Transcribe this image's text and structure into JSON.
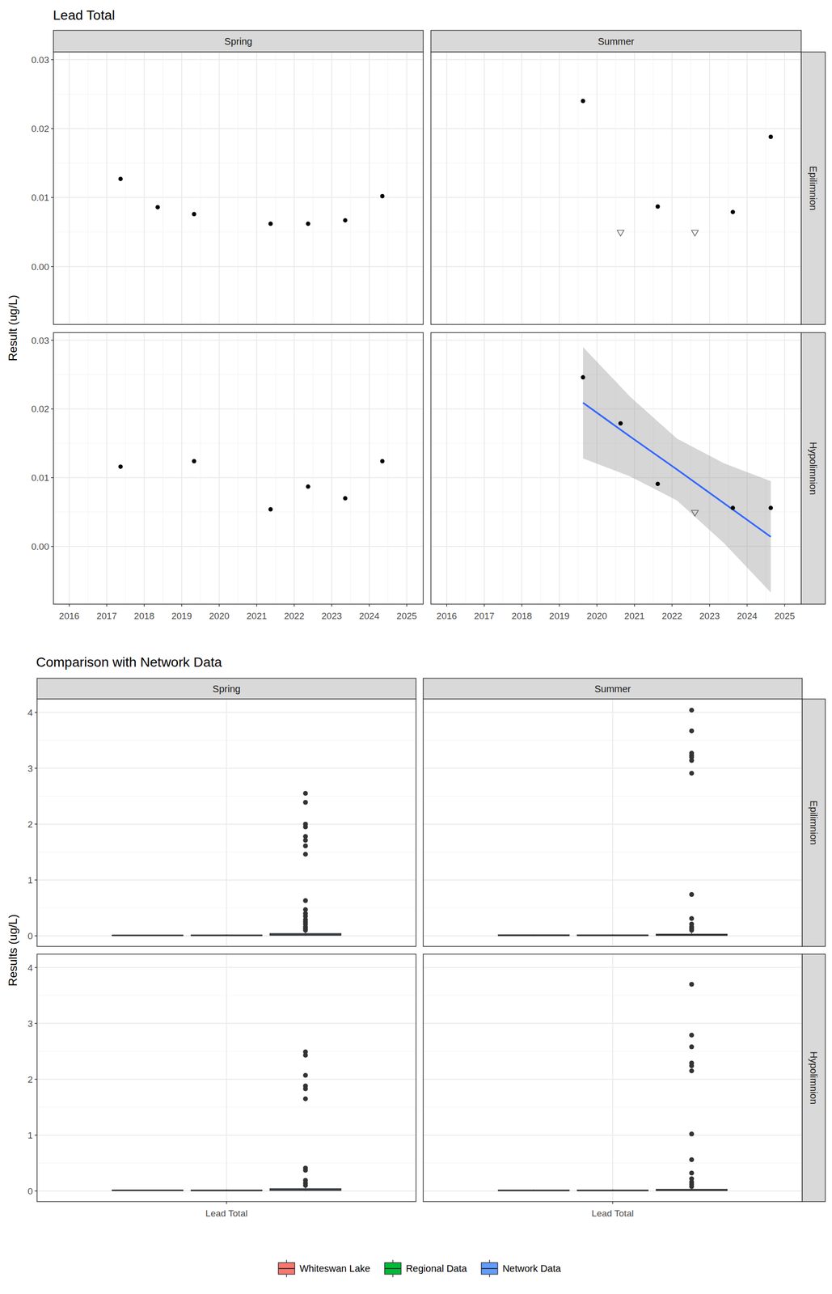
{
  "chart_data": [
    {
      "type": "scatter",
      "title": "Lead Total",
      "y_label": "Result (ug/L)",
      "columns": [
        "Spring",
        "Summer"
      ],
      "rows": [
        "Epilimnion",
        "Hypolimnion"
      ],
      "xlim": [
        2015.58,
        2025.44
      ],
      "xticks": [
        2016,
        2017,
        2018,
        2019,
        2020,
        2021,
        2022,
        2023,
        2024,
        2025
      ],
      "ylim": [
        -0.0084,
        0.0311
      ],
      "yticks": [
        {
          "value": 0,
          "label": "0.00"
        },
        {
          "value": 0.01,
          "label": "0.01"
        },
        {
          "value": 0.02,
          "label": "0.02"
        },
        {
          "value": 0.03,
          "label": "0.03"
        }
      ],
      "grid": true,
      "panels": [
        [
          {
            "series": [
              {
                "marker": "circle",
                "color": "#000000",
                "x": [
                  2017.37,
                  2018.36,
                  2019.33,
                  2021.37,
                  2022.37,
                  2023.36,
                  2024.35
                ],
                "values": [
                  0.0127,
                  0.0086,
                  0.0076,
                  0.0062,
                  0.0062,
                  0.0067,
                  0.0102
                ]
              }
            ]
          },
          {
            "series": [
              {
                "marker": "circle",
                "color": "#000000",
                "x": [
                  2019.63,
                  2021.62,
                  2023.62,
                  2024.63
                ],
                "values": [
                  0.024,
                  0.0087,
                  0.0079,
                  0.0188
                ]
              },
              {
                "marker": "triangle",
                "color": "#555555",
                "x": [
                  2020.63,
                  2022.61
                ],
                "values": [
                  0.0049,
                  0.0049
                ]
              }
            ]
          }
        ],
        [
          {
            "series": [
              {
                "marker": "circle",
                "color": "#000000",
                "x": [
                  2017.37,
                  2019.33,
                  2021.37,
                  2022.37,
                  2023.36,
                  2024.35
                ],
                "values": [
                  0.0116,
                  0.0124,
                  0.0054,
                  0.0087,
                  0.007,
                  0.0124
                ]
              }
            ]
          },
          {
            "series": [
              {
                "type": "line",
                "color": "#3366FF",
                "x": [
                  2019.63,
                  2020.88,
                  2022.13,
                  2023.38,
                  2024.63
                ],
                "values": [
                  0.0209,
                  0.016,
                  0.0112,
                  0.0063,
                  0.0014
                ],
                "lower": [
                  0.0128,
                  0.0102,
                  0.0067,
                  0.0005,
                  -0.0067
                ],
                "upper": [
                  0.029,
                  0.0218,
                  0.0157,
                  0.0121,
                  0.0095
                ]
              },
              {
                "marker": "circle",
                "color": "#000000",
                "x": [
                  2019.63,
                  2020.63,
                  2021.62,
                  2023.62,
                  2024.63
                ],
                "values": [
                  0.0246,
                  0.0179,
                  0.0091,
                  0.0056,
                  0.0056
                ]
              },
              {
                "marker": "triangle",
                "color": "#555555",
                "x": [
                  2022.61
                ],
                "values": [
                  0.0049
                ]
              }
            ]
          }
        ]
      ]
    },
    {
      "type": "box",
      "title": "Comparison with Network Data",
      "y_label": "Results (ug/L)",
      "categories": [
        "Lead Total"
      ],
      "columns": [
        "Spring",
        "Summer"
      ],
      "rows": [
        "Epilimnion",
        "Hypolimnion"
      ],
      "ylim": [
        -0.19,
        4.24
      ],
      "yticks": [
        0,
        1,
        2,
        3,
        4
      ],
      "grid": true,
      "legend": "bottom",
      "series": [
        {
          "name": "Whiteswan Lake",
          "color": "#F8766D",
          "boxes": [
            [
              {
                "min": 0.0062,
                "q1": 0.0062,
                "median": 0.0076,
                "q3": 0.0094,
                "max": 0.0127
              },
              {
                "min": 0.0049,
                "q1": 0.0057,
                "median": 0.0083,
                "q3": 0.0161,
                "max": 0.024
              }
            ],
            [
              {
                "min": 0.0054,
                "q1": 0.0074,
                "median": 0.0106,
                "q3": 0.0122,
                "max": 0.0124
              },
              {
                "min": 0.0049,
                "q1": 0.0056,
                "median": 0.0074,
                "q3": 0.0157,
                "max": 0.0246
              }
            ]
          ]
        },
        {
          "name": "Regional Data",
          "color": "#00BA38",
          "boxes": [
            [
              {
                "min": 0.002,
                "q1": 0.005,
                "median": 0.008,
                "q3": 0.013,
                "max": 0.025
              },
              {
                "min": 0.002,
                "q1": 0.005,
                "median": 0.009,
                "q3": 0.015,
                "max": 0.028
              }
            ],
            [
              {
                "min": 0.002,
                "q1": 0.005,
                "median": 0.009,
                "q3": 0.014,
                "max": 0.027
              },
              {
                "min": 0.002,
                "q1": 0.005,
                "median": 0.009,
                "q3": 0.015,
                "max": 0.028
              }
            ]
          ]
        },
        {
          "name": "Network Data",
          "color": "#619CFF",
          "boxes": [
            [
              {
                "min": 0.001,
                "q1": 0.01,
                "median": 0.02,
                "q3": 0.04,
                "max": 0.085,
                "outliers": [
                  2.55,
                  2.39,
                  2.0,
                  1.95,
                  1.78,
                  1.71,
                  1.61,
                  1.46,
                  0.63,
                  0.47,
                  0.4,
                  0.35,
                  0.29,
                  0.25,
                  0.21,
                  0.16,
                  0.13,
                  0.1
                ]
              },
              {
                "min": 0.001,
                "q1": 0.008,
                "median": 0.015,
                "q3": 0.03,
                "max": 0.07,
                "outliers": [
                  4.04,
                  3.67,
                  3.27,
                  3.23,
                  3.2,
                  3.14,
                  2.91,
                  0.74,
                  0.31,
                  0.21,
                  0.16,
                  0.13,
                  0.1
                ]
              }
            ],
            [
              {
                "min": 0.001,
                "q1": 0.01,
                "median": 0.02,
                "q3": 0.04,
                "max": 0.085,
                "outliers": [
                  2.49,
                  2.43,
                  2.07,
                  1.88,
                  1.83,
                  1.65,
                  0.41,
                  0.37,
                  0.19,
                  0.14,
                  0.1
                ]
              },
              {
                "min": 0.001,
                "q1": 0.008,
                "median": 0.015,
                "q3": 0.03,
                "max": 0.07,
                "outliers": [
                  3.7,
                  2.79,
                  2.58,
                  2.29,
                  2.24,
                  2.15,
                  1.02,
                  0.56,
                  0.32,
                  0.22,
                  0.16,
                  0.12,
                  0.08
                ]
              }
            ]
          ]
        }
      ]
    }
  ]
}
